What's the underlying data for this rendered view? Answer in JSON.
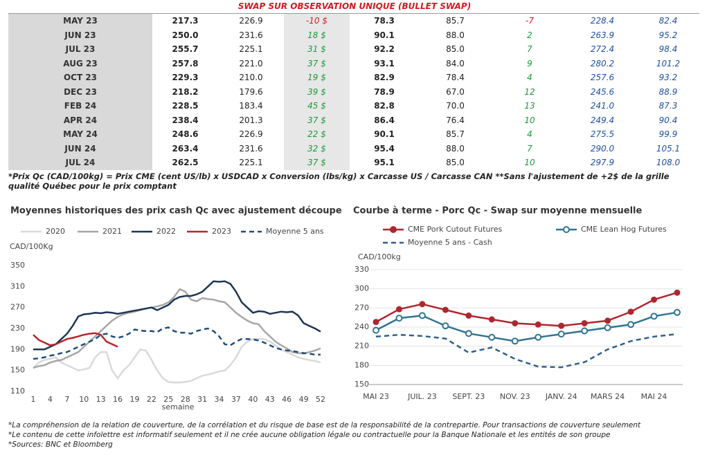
{
  "title": "SWAP SUR OBSERVATION UNIQUE (BULLET SWAP)",
  "table": {
    "rows": [
      [
        "MAY 23",
        "217.3",
        "226.9",
        "-10 $",
        "78.3",
        "85.7",
        "-7",
        "228.4",
        "82.4"
      ],
      [
        "JUN 23",
        "250.0",
        "231.6",
        "18 $",
        "90.1",
        "88.0",
        "2",
        "263.9",
        "95.2"
      ],
      [
        "JUL 23",
        "255.7",
        "225.1",
        "31 $",
        "92.2",
        "85.0",
        "7",
        "272.4",
        "98.4"
      ],
      [
        "AUG 23",
        "257.8",
        "221.0",
        "37 $",
        "93.1",
        "84.0",
        "9",
        "280.2",
        "101.2"
      ],
      [
        "OCT 23",
        "229.3",
        "210.0",
        "19 $",
        "82.9",
        "78.4",
        "4",
        "257.6",
        "93.2"
      ],
      [
        "DEC 23",
        "218.2",
        "179.6",
        "39 $",
        "78.9",
        "67.0",
        "12",
        "245.6",
        "88.9"
      ],
      [
        "FEB 24",
        "228.5",
        "183.4",
        "45 $",
        "82.8",
        "70.0",
        "13",
        "241.0",
        "87.3"
      ],
      [
        "APR 24",
        "238.4",
        "201.3",
        "37 $",
        "86.4",
        "76.4",
        "10",
        "249.4",
        "90.4"
      ],
      [
        "MAY 24",
        "248.6",
        "226.9",
        "22 $",
        "90.1",
        "85.7",
        "4",
        "275.5",
        "99.9"
      ],
      [
        "JUN 24",
        "263.4",
        "231.6",
        "32 $",
        "95.4",
        "88.0",
        "7",
        "290.0",
        "105.1"
      ],
      [
        "JUL 24",
        "262.5",
        "225.1",
        "37 $",
        "95.1",
        "85.0",
        "10",
        "297.9",
        "108.0"
      ]
    ]
  },
  "table_note": "*Prix Qc (CAD/100kg) = Prix CME (cent US/lb) x USDCAD x Conversion (lbs/kg) x Carcasse US / Carcasse CAN **Sans l'ajustement de +2$ de la grille qualité Québec pour le prix comptant",
  "chart_data": [
    {
      "type": "line",
      "title": "Moyennes historiques des prix cash Qc avec ajustement découpe",
      "y_label": "CAD/100Kg",
      "x_label": "semaine",
      "x": [
        1,
        2,
        3,
        4,
        5,
        6,
        7,
        8,
        9,
        10,
        11,
        12,
        13,
        14,
        15,
        16,
        17,
        18,
        19,
        20,
        21,
        22,
        23,
        24,
        25,
        26,
        27,
        28,
        29,
        30,
        31,
        32,
        33,
        34,
        35,
        36,
        37,
        38,
        39,
        40,
        41,
        42,
        43,
        44,
        45,
        46,
        47,
        48,
        49,
        50,
        51,
        52
      ],
      "xlim": [
        1,
        52
      ],
      "xticks": [
        1,
        4,
        7,
        10,
        13,
        16,
        19,
        22,
        25,
        28,
        31,
        34,
        37,
        40,
        43,
        46,
        49,
        52
      ],
      "ylim": [
        110,
        350
      ],
      "yticks": [
        110,
        150,
        190,
        230,
        270,
        310,
        350
      ],
      "grid": false,
      "series": [
        {
          "name": "2020",
          "color": "#d9d9d9",
          "style": "solid",
          "values": [
            155,
            165,
            170,
            172,
            175,
            165,
            160,
            155,
            150,
            152,
            155,
            175,
            185,
            185,
            150,
            135,
            150,
            160,
            175,
            190,
            188,
            170,
            150,
            135,
            128,
            127,
            127,
            128,
            130,
            135,
            140,
            142,
            145,
            148,
            150,
            160,
            175,
            195,
            205,
            210,
            210,
            210,
            205,
            198,
            190,
            185,
            180,
            175,
            172,
            170,
            168,
            165
          ]
        },
        {
          "name": "2021",
          "color": "#a6a6a6",
          "style": "solid",
          "values": [
            155,
            158,
            160,
            165,
            168,
            170,
            175,
            180,
            185,
            195,
            205,
            215,
            225,
            235,
            245,
            252,
            257,
            260,
            262,
            265,
            268,
            270,
            272,
            275,
            280,
            290,
            305,
            300,
            285,
            282,
            288,
            286,
            285,
            282,
            280,
            270,
            260,
            252,
            245,
            240,
            238,
            225,
            215,
            205,
            198,
            192,
            185,
            183,
            182,
            185,
            188,
            192
          ]
        },
        {
          "name": "2022",
          "color": "#1c3553",
          "style": "solid",
          "values": [
            190,
            190,
            190,
            195,
            200,
            210,
            220,
            235,
            253,
            257,
            258,
            260,
            259,
            261,
            260,
            258,
            260,
            262,
            264,
            266,
            268,
            270,
            265,
            270,
            275,
            285,
            290,
            292,
            292,
            295,
            300,
            310,
            320,
            319,
            320,
            315,
            300,
            280,
            270,
            260,
            263,
            262,
            258,
            260,
            262,
            261,
            262,
            255,
            240,
            235,
            230,
            224
          ]
        },
        {
          "name": "2023",
          "color": "#b8232b",
          "style": "solid",
          "values": [
            218,
            208,
            203,
            198,
            200,
            205,
            210,
            212,
            215,
            218,
            220,
            221,
            218,
            205,
            200,
            195,
            null,
            null,
            null,
            null,
            null,
            null,
            null,
            null,
            null,
            null,
            null,
            null,
            null,
            null,
            null,
            null,
            null,
            null,
            null,
            null,
            null,
            null,
            null,
            null,
            null,
            null,
            null,
            null,
            null,
            null,
            null,
            null,
            null,
            null,
            null,
            null
          ]
        },
        {
          "name": "Moyenne 5 ans",
          "color": "#1f4e79",
          "style": "dashed",
          "values": [
            172,
            173,
            175,
            178,
            180,
            183,
            185,
            190,
            195,
            200,
            205,
            210,
            218,
            220,
            215,
            212,
            215,
            220,
            228,
            226,
            225,
            225,
            223,
            230,
            232,
            225,
            222,
            222,
            220,
            225,
            228,
            230,
            225,
            215,
            200,
            198,
            205,
            210,
            210,
            209,
            207,
            203,
            198,
            193,
            190,
            188,
            187,
            185,
            183,
            182,
            180,
            180
          ]
        }
      ]
    },
    {
      "type": "line",
      "title": "Courbe à terme - Porc Qc - Swap sur moyenne mensuelle",
      "y_label": "CAD/100kg",
      "categories": [
        "MAI 23",
        null,
        "JUIL. 23",
        null,
        "SEPT. 23",
        null,
        "NOV. 23",
        null,
        "JANV. 24",
        null,
        "MARS 24",
        null,
        "MAI 24",
        null
      ],
      "ylim": [
        150,
        330
      ],
      "yticks": [
        150,
        180,
        210,
        240,
        270,
        300,
        330
      ],
      "grid": true,
      "series": [
        {
          "name": "CME Pork Cutout Futures",
          "color": "#b0262e",
          "style": "solid",
          "marker": "filled",
          "values": [
            248,
            268,
            276,
            267,
            258,
            252,
            246,
            244,
            242,
            246,
            250,
            264,
            283,
            294
          ]
        },
        {
          "name": "CME Lean Hog Futures",
          "color": "#2e7391",
          "style": "solid",
          "marker": "open",
          "values": [
            235,
            254,
            258,
            242,
            230,
            224,
            218,
            224,
            229,
            234,
            239,
            244,
            257,
            263
          ]
        },
        {
          "name": "Moyenne 5 ans - Cash",
          "color": "#2e5f8a",
          "style": "dashed",
          "values": [
            225,
            228,
            226,
            222,
            200,
            208,
            190,
            178,
            177,
            185,
            205,
            218,
            225,
            229
          ]
        }
      ]
    }
  ],
  "footnotes": [
    "*La compréhension de la relation de couverture, de la corrélation et du risque de base est de la responsabilité de la contrepartie. Pour transactions de couverture seulement",
    "*Le contenu de cette infolettre est informatif seulement et il ne crée aucune obligation légale ou contractuelle pour la Banque Nationale et les entités de son groupe",
    "*Sources: BNC et Bloomberg"
  ]
}
